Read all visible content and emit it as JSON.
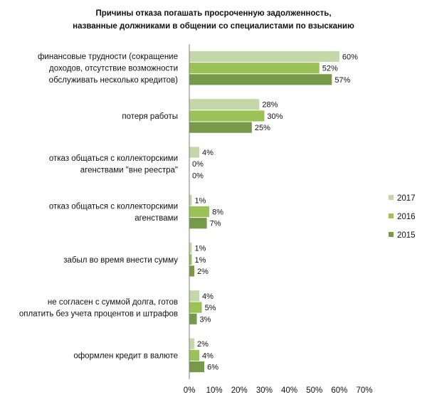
{
  "chart_data": {
    "type": "bar",
    "orientation": "horizontal",
    "title_lines": [
      "Причины отказа погашать просроченную задолженность,",
      "названные должниками в общении со специалистами по взысканию"
    ],
    "categories": [
      [
        "финансовые трудности (сокращение",
        "доходов, отсутствие возможности",
        "обслуживать несколько кредитов)"
      ],
      [
        "потеря работы"
      ],
      [
        "отказ общаться с коллекторскими",
        "агенствами \"вне реестра\""
      ],
      [
        "отказ общаться с коллекторскими",
        "агенствами"
      ],
      [
        "забыл во время внести сумму"
      ],
      [
        "не согласен с суммой долга, готов",
        "оплатить без учета процентов и штрафов"
      ],
      [
        "оформлен кредит в валюте"
      ]
    ],
    "series": [
      {
        "name": "2017",
        "color": "#c4d7a8",
        "values": [
          60,
          28,
          4,
          1,
          1,
          4,
          2
        ]
      },
      {
        "name": "2016",
        "color": "#9bc257",
        "values": [
          52,
          30,
          0,
          8,
          1,
          5,
          4
        ]
      },
      {
        "name": "2015",
        "color": "#77994a",
        "values": [
          57,
          25,
          0,
          7,
          2,
          3,
          6
        ]
      }
    ],
    "data_labels": [
      [
        "60%",
        "52%",
        "57%"
      ],
      [
        "28%",
        "30%",
        "25%"
      ],
      [
        "4%",
        "0%",
        "0%"
      ],
      [
        "1%",
        "8%",
        "7%"
      ],
      [
        "1%",
        "1%",
        "2%"
      ],
      [
        "4%",
        "5%",
        "3%"
      ],
      [
        "2%",
        "4%",
        "6%"
      ]
    ],
    "xlim": [
      0,
      70
    ],
    "xticks": [
      "0%",
      "10%",
      "20%",
      "30%",
      "40%",
      "50%",
      "60%",
      "70%"
    ],
    "legend": {
      "position": "right",
      "order": [
        "2017",
        "2016",
        "2015"
      ]
    },
    "grid": false
  }
}
